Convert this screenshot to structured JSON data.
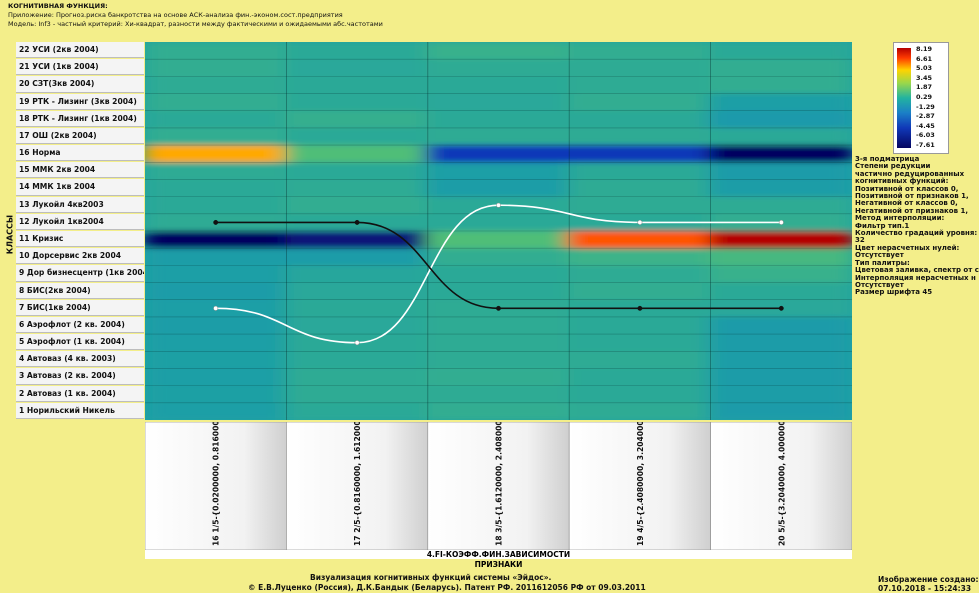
{
  "header": {
    "line1": "КОГНИТИВНАЯ ФУНКЦИЯ:",
    "line2": "Приложение: Прогноз.риска банкротства на основе АСК-анализа фин.-эконом.сост.предприятия",
    "line3": "Модель: Inf3 - частный критерий: Хи-квадрат, разности между фактическими и ожидаемыми абс.частотами"
  },
  "y_axis_label": "КЛАССЫ",
  "x_axis_title": "4.FI-КОЭФФ.ФИН.ЗАВИСИМОСТИ",
  "x_axis_subtitle": "ПРИЗНАКИ",
  "footer": {
    "line1": "Визуализация когнитивных функций системы «Эйдос».",
    "line2": "© Е.В.Луценко (Россия), Д.К.Бандык (Беларусь). Патент РФ. 2011612056 РФ от 09.03.2011",
    "created_label": "Изображение создано:",
    "created_value": "07.10.2018 - 15:24:33"
  },
  "legend": {
    "ticks": [
      "8.19",
      "6.61",
      "5.03",
      "3.45",
      "1.87",
      "0.29",
      "-1.29",
      "-2.87",
      "-4.45",
      "-6.03",
      "-7.61"
    ]
  },
  "info_panel": [
    "3-я подматрица",
    "Степени редукции",
    "частично редуцированных",
    "когнитивных функций:",
    "Позитивной от классов      0,",
    "Позитивной от признаков    1,",
    "Негативной от классов      0,",
    "Негативной от признаков    1,",
    "Метод интерполяции:",
    "Фильтр тип.1",
    "Количество градаций уровня:",
    "32",
    "Цвет нерасчетных нулей:",
    "Отсутствует",
    "Тип палитры:",
    "Цветовая заливка, спектр от с",
    "Интерполяция нерасчетных н",
    "Отсутствует",
    "Размер шрифта 45"
  ],
  "chart_data": {
    "type": "heatmap",
    "title": "КОГНИТИВНАЯ ФУНКЦИЯ:",
    "xlabel": "ПРИЗНАКИ",
    "ylabel": "КЛАССЫ",
    "colorbar_range": [
      -7.61,
      8.19
    ],
    "classes": [
      "22 УСИ (2кв 2004)",
      "21 УСИ (1кв 2004)",
      "20 СЗТ(3кв 2004)",
      "19 РТК - Лизинг (3кв 2004)",
      "18 РТК - Лизинг (1кв 2004)",
      "17 ОШ (2кв 2004)",
      "16 Норма",
      "15 ММК 2кв 2004",
      "14 ММК 1кв 2004",
      "13 Лукойл 4кв2003",
      "12 Лукойл 1кв2004",
      "11 Кризис",
      "10 Дорсервис 2кв 2004",
      "9 Дор бизнесцентр (1кв 2004)",
      "8 БИС(2кв 2004)",
      "7 БИС(1кв 2004)",
      "6 Аэрофлот (2 кв. 2004)",
      "5 Аэрофлот (1 кв. 2004)",
      "4 Автоваз (4 кв. 2003)",
      "3 Автоваз (2 кв. 2004)",
      "2 Автоваз (1 кв. 2004)",
      "1 Норильский Никель"
    ],
    "features": [
      "16 1/5-{0.0200000, 0.8160000}",
      "17 2/5-{0.8160000, 1.6120000}",
      "18 3/5-{1.6120000, 2.4080000}",
      "19 4/5-{2.4080000, 3.2040000}",
      "20 5/5-{3.2040000, 4.0000000}"
    ],
    "values": [
      [
        0.6,
        0.4,
        0.8,
        0.6,
        0.4
      ],
      [
        0.6,
        0.3,
        0.5,
        0.5,
        0.6
      ],
      [
        0.5,
        0.4,
        0.4,
        0.5,
        0.6
      ],
      [
        0.6,
        0.4,
        0.3,
        0.6,
        -0.3
      ],
      [
        0.4,
        0.7,
        0.4,
        0.4,
        -0.7
      ],
      [
        0.6,
        0.4,
        0.5,
        0.5,
        0.4
      ],
      [
        5.5,
        1.5,
        -5.5,
        -5.5,
        -7.6
      ],
      [
        0.5,
        0.4,
        -0.3,
        0.4,
        -0.6
      ],
      [
        0.4,
        0.5,
        -0.4,
        0.5,
        -0.4
      ],
      [
        0.4,
        0.6,
        0.4,
        0.5,
        0.5
      ],
      [
        0.5,
        0.4,
        0.4,
        0.4,
        0.6
      ],
      [
        -7.6,
        -7.0,
        1.5,
        6.5,
        8.19
      ],
      [
        -0.4,
        -0.5,
        0.6,
        0.9,
        1.2
      ],
      [
        -0.3,
        0.2,
        0.4,
        0.5,
        0.8
      ],
      [
        -0.5,
        0.3,
        0.4,
        0.6,
        0.4
      ],
      [
        -0.3,
        0.4,
        0.5,
        0.4,
        0.3
      ],
      [
        -0.4,
        0.3,
        0.5,
        0.4,
        -0.6
      ],
      [
        -0.3,
        0.4,
        0.5,
        0.4,
        -0.5
      ],
      [
        -0.2,
        0.4,
        0.5,
        0.5,
        -0.4
      ],
      [
        -0.3,
        0.5,
        0.6,
        0.4,
        -0.5
      ],
      [
        -0.2,
        0.5,
        0.5,
        0.4,
        -0.4
      ],
      [
        -0.3,
        0.4,
        0.6,
        0.5,
        -0.6
      ]
    ],
    "lines": [
      {
        "color": "#ffffff",
        "class_index": [
          16.0,
          18.0,
          10.0,
          11.0,
          11.0
        ]
      },
      {
        "color": "#111111",
        "class_index": [
          11.0,
          11.0,
          16.0,
          16.0,
          16.0
        ]
      }
    ]
  },
  "colors": {
    "background": "#f3ee8a",
    "white_line": "#ffffff",
    "black_line": "#111111"
  }
}
